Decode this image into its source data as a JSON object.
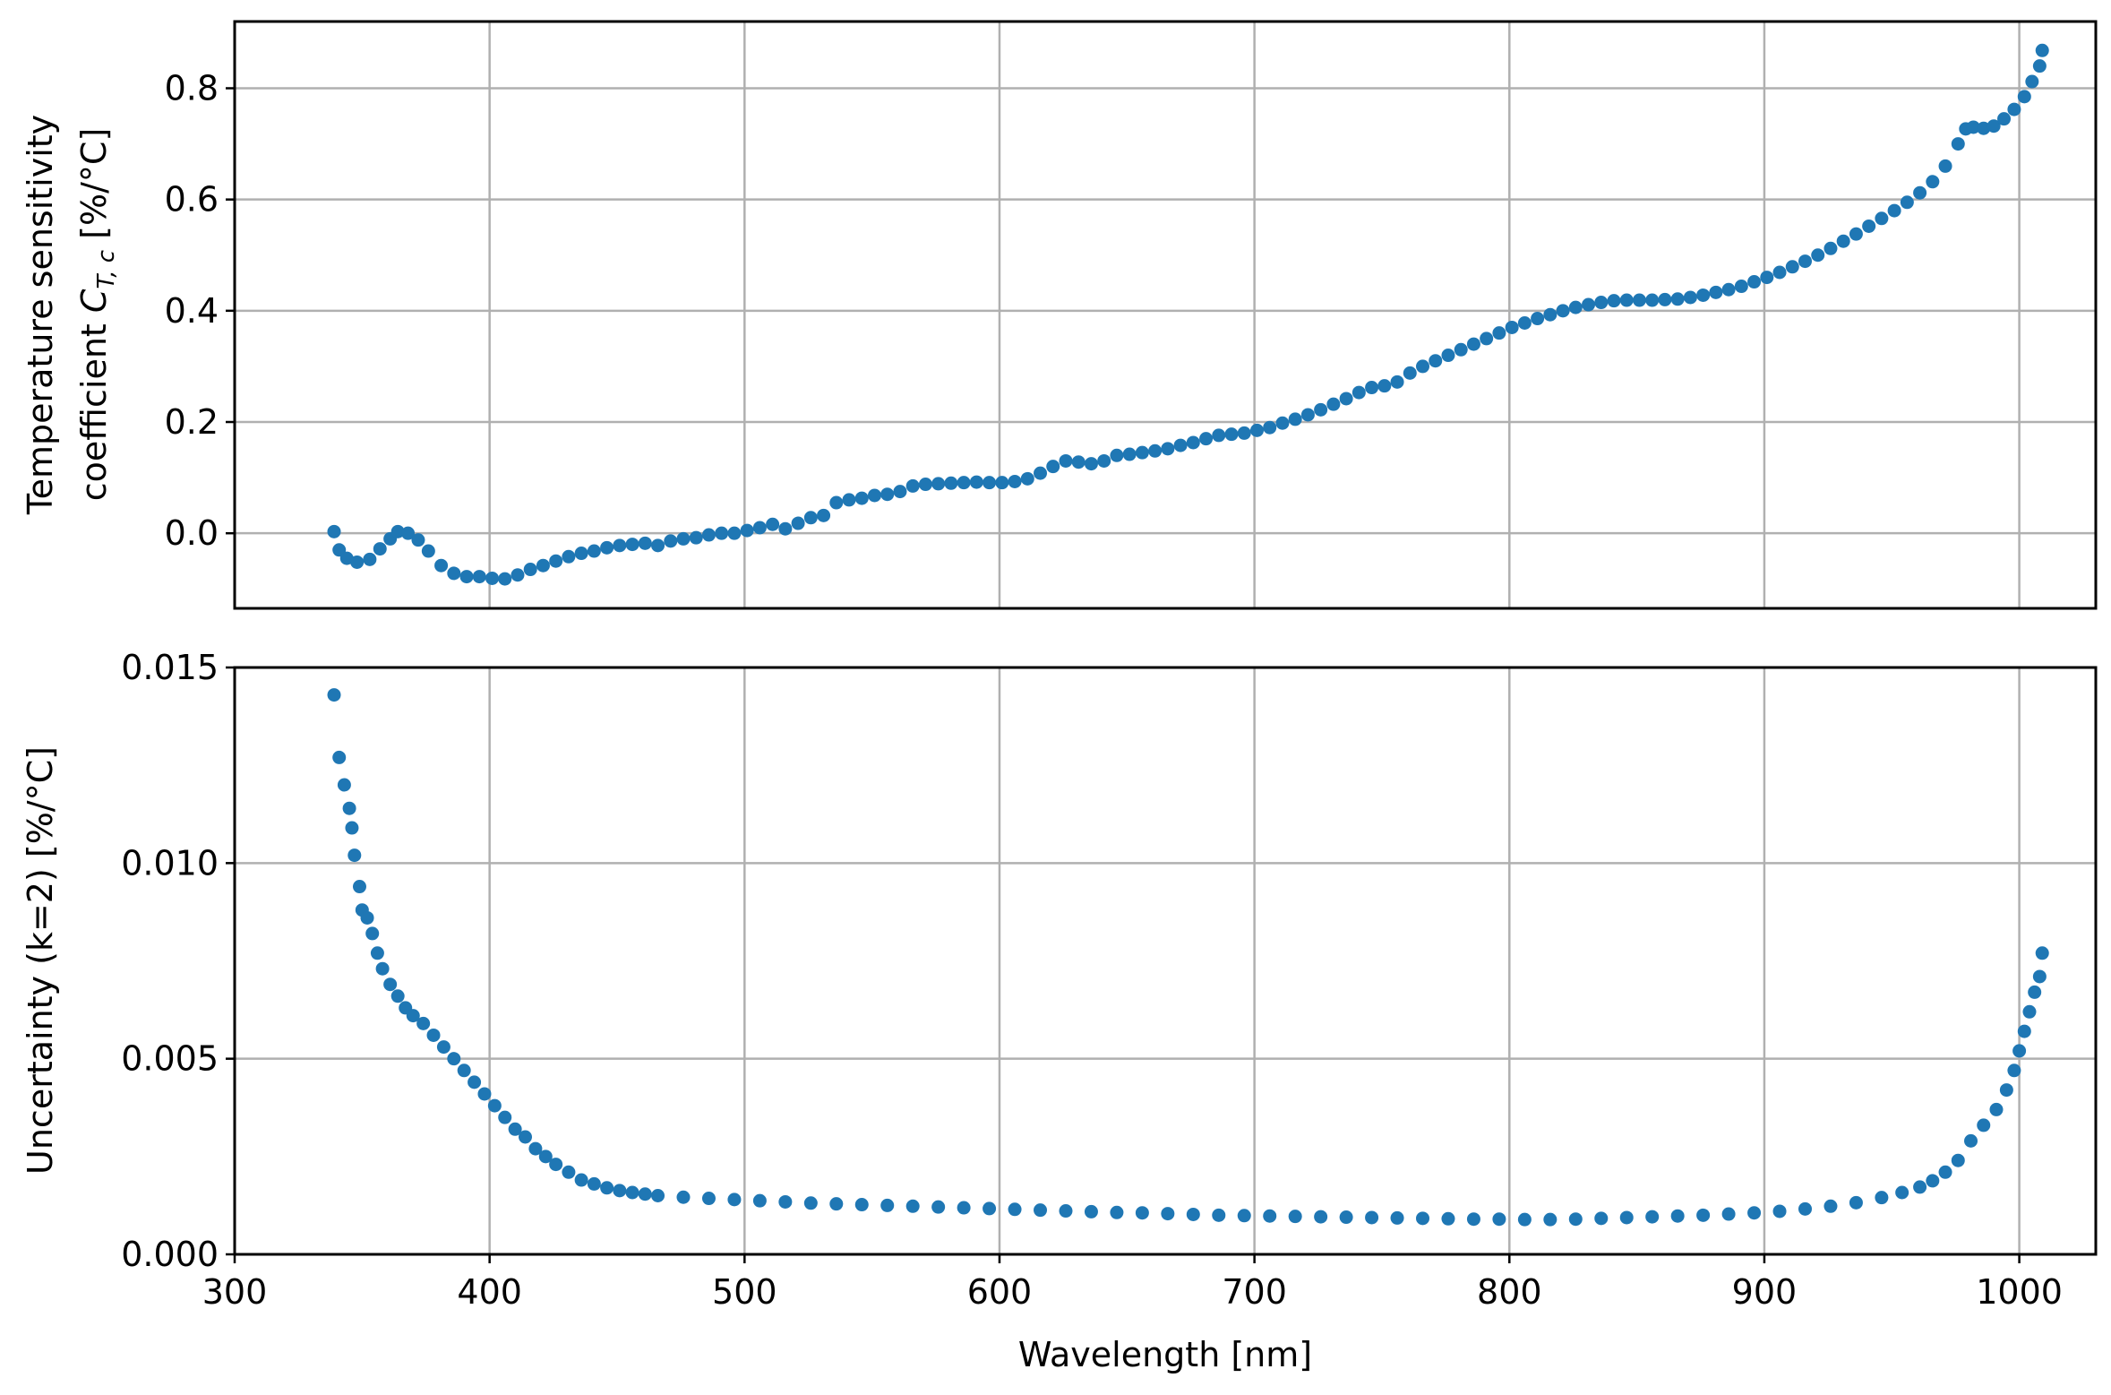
{
  "chart_data": [
    {
      "type": "scatter",
      "xlabel": "Wavelength [nm]",
      "ylabel_lines": [
        "Temperature sensitivity",
        "coefficient",
        "C",
        "T, c",
        "[%/°C]"
      ],
      "xlim": [
        300,
        1030
      ],
      "ylim": [
        -0.135,
        0.92
      ],
      "xticks": [
        300,
        400,
        500,
        600,
        700,
        800,
        900,
        1000
      ],
      "yticks": [
        0.0,
        0.2,
        0.4,
        0.6,
        0.8
      ],
      "ytick_labels": [
        "0.0",
        "0.2",
        "0.4",
        "0.6",
        "0.8"
      ],
      "grid": true,
      "color": "#1f77b4",
      "series": [
        {
          "points": [
            [
              339,
              0.003
            ],
            [
              341,
              -0.03
            ],
            [
              344,
              -0.045
            ],
            [
              348,
              -0.052
            ],
            [
              353,
              -0.047
            ],
            [
              357,
              -0.028
            ],
            [
              361,
              -0.01
            ],
            [
              364,
              0.003
            ],
            [
              368,
              0.0
            ],
            [
              372,
              -0.012
            ],
            [
              376,
              -0.032
            ],
            [
              381,
              -0.058
            ],
            [
              386,
              -0.072
            ],
            [
              391,
              -0.078
            ],
            [
              396,
              -0.078
            ],
            [
              401,
              -0.081
            ],
            [
              406,
              -0.082
            ],
            [
              411,
              -0.075
            ],
            [
              416,
              -0.065
            ],
            [
              421,
              -0.058
            ],
            [
              426,
              -0.05
            ],
            [
              431,
              -0.042
            ],
            [
              436,
              -0.036
            ],
            [
              441,
              -0.032
            ],
            [
              446,
              -0.026
            ],
            [
              451,
              -0.022
            ],
            [
              456,
              -0.02
            ],
            [
              461,
              -0.018
            ],
            [
              466,
              -0.022
            ],
            [
              471,
              -0.014
            ],
            [
              476,
              -0.01
            ],
            [
              481,
              -0.008
            ],
            [
              486,
              -0.003
            ],
            [
              491,
              0.0
            ],
            [
              496,
              0.0
            ],
            [
              501,
              0.005
            ],
            [
              506,
              0.01
            ],
            [
              511,
              0.016
            ],
            [
              516,
              0.008
            ],
            [
              521,
              0.018
            ],
            [
              526,
              0.028
            ],
            [
              531,
              0.032
            ],
            [
              536,
              0.055
            ],
            [
              541,
              0.06
            ],
            [
              546,
              0.063
            ],
            [
              551,
              0.068
            ],
            [
              556,
              0.07
            ],
            [
              561,
              0.075
            ],
            [
              566,
              0.085
            ],
            [
              571,
              0.088
            ],
            [
              576,
              0.089
            ],
            [
              581,
              0.09
            ],
            [
              586,
              0.091
            ],
            [
              591,
              0.092
            ],
            [
              596,
              0.091
            ],
            [
              601,
              0.091
            ],
            [
              606,
              0.093
            ],
            [
              611,
              0.098
            ],
            [
              616,
              0.108
            ],
            [
              621,
              0.12
            ],
            [
              626,
              0.13
            ],
            [
              631,
              0.128
            ],
            [
              636,
              0.125
            ],
            [
              641,
              0.13
            ],
            [
              646,
              0.14
            ],
            [
              651,
              0.142
            ],
            [
              656,
              0.145
            ],
            [
              661,
              0.148
            ],
            [
              666,
              0.152
            ],
            [
              671,
              0.158
            ],
            [
              676,
              0.163
            ],
            [
              681,
              0.17
            ],
            [
              686,
              0.176
            ],
            [
              691,
              0.178
            ],
            [
              696,
              0.18
            ],
            [
              701,
              0.185
            ],
            [
              706,
              0.19
            ],
            [
              711,
              0.198
            ],
            [
              716,
              0.205
            ],
            [
              721,
              0.213
            ],
            [
              726,
              0.222
            ],
            [
              731,
              0.232
            ],
            [
              736,
              0.242
            ],
            [
              741,
              0.253
            ],
            [
              746,
              0.262
            ],
            [
              751,
              0.265
            ],
            [
              756,
              0.272
            ],
            [
              761,
              0.288
            ],
            [
              766,
              0.3
            ],
            [
              771,
              0.31
            ],
            [
              776,
              0.32
            ],
            [
              781,
              0.33
            ],
            [
              786,
              0.34
            ],
            [
              791,
              0.35
            ],
            [
              796,
              0.36
            ],
            [
              801,
              0.37
            ],
            [
              806,
              0.378
            ],
            [
              811,
              0.386
            ],
            [
              816,
              0.393
            ],
            [
              821,
              0.4
            ],
            [
              826,
              0.406
            ],
            [
              831,
              0.411
            ],
            [
              836,
              0.415
            ],
            [
              841,
              0.418
            ],
            [
              846,
              0.419
            ],
            [
              851,
              0.419
            ],
            [
              856,
              0.419
            ],
            [
              861,
              0.42
            ],
            [
              866,
              0.421
            ],
            [
              871,
              0.424
            ],
            [
              876,
              0.428
            ],
            [
              881,
              0.433
            ],
            [
              886,
              0.438
            ],
            [
              891,
              0.444
            ],
            [
              896,
              0.452
            ],
            [
              901,
              0.46
            ],
            [
              906,
              0.469
            ],
            [
              911,
              0.479
            ],
            [
              916,
              0.489
            ],
            [
              921,
              0.5
            ],
            [
              926,
              0.512
            ],
            [
              931,
              0.525
            ],
            [
              936,
              0.538
            ],
            [
              941,
              0.552
            ],
            [
              946,
              0.566
            ],
            [
              951,
              0.58
            ],
            [
              956,
              0.595
            ],
            [
              961,
              0.612
            ],
            [
              966,
              0.632
            ],
            [
              971,
              0.66
            ],
            [
              976,
              0.7
            ],
            [
              979,
              0.727
            ],
            [
              982,
              0.73
            ],
            [
              986,
              0.728
            ],
            [
              990,
              0.732
            ],
            [
              994,
              0.745
            ],
            [
              998,
              0.762
            ],
            [
              1002,
              0.785
            ],
            [
              1005,
              0.812
            ],
            [
              1008,
              0.84
            ],
            [
              1009,
              0.868
            ]
          ]
        }
      ]
    },
    {
      "type": "scatter",
      "xlabel": "Wavelength [nm]",
      "ylabel": "Uncertainty (k=2) [%/°C]",
      "xlim": [
        300,
        1030
      ],
      "ylim": [
        0.0,
        0.015
      ],
      "xticks": [
        300,
        400,
        500,
        600,
        700,
        800,
        900,
        1000
      ],
      "xtick_labels": [
        "300",
        "400",
        "500",
        "600",
        "700",
        "800",
        "900",
        "1000"
      ],
      "yticks": [
        0.0,
        0.005,
        0.01,
        0.015
      ],
      "ytick_labels": [
        "0.000",
        "0.005",
        "0.010",
        "0.015"
      ],
      "grid": true,
      "color": "#1f77b4",
      "series": [
        {
          "points": [
            [
              339,
              0.0143
            ],
            [
              341,
              0.0127
            ],
            [
              343,
              0.012
            ],
            [
              345,
              0.0114
            ],
            [
              346,
              0.0109
            ],
            [
              347,
              0.0102
            ],
            [
              349,
              0.0094
            ],
            [
              350,
              0.0088
            ],
            [
              352,
              0.0086
            ],
            [
              354,
              0.0082
            ],
            [
              356,
              0.0077
            ],
            [
              358,
              0.0073
            ],
            [
              361,
              0.0069
            ],
            [
              364,
              0.0066
            ],
            [
              367,
              0.0063
            ],
            [
              370,
              0.0061
            ],
            [
              374,
              0.0059
            ],
            [
              378,
              0.0056
            ],
            [
              382,
              0.0053
            ],
            [
              386,
              0.005
            ],
            [
              390,
              0.0047
            ],
            [
              394,
              0.0044
            ],
            [
              398,
              0.0041
            ],
            [
              402,
              0.0038
            ],
            [
              406,
              0.0035
            ],
            [
              410,
              0.0032
            ],
            [
              414,
              0.003
            ],
            [
              418,
              0.0027
            ],
            [
              422,
              0.0025
            ],
            [
              426,
              0.0023
            ],
            [
              431,
              0.0021
            ],
            [
              436,
              0.0019
            ],
            [
              441,
              0.0018
            ],
            [
              446,
              0.0017
            ],
            [
              451,
              0.00163
            ],
            [
              456,
              0.00158
            ],
            [
              461,
              0.00154
            ],
            [
              466,
              0.0015
            ],
            [
              476,
              0.00146
            ],
            [
              486,
              0.00143
            ],
            [
              496,
              0.0014
            ],
            [
              506,
              0.00137
            ],
            [
              516,
              0.00134
            ],
            [
              526,
              0.00131
            ],
            [
              536,
              0.00129
            ],
            [
              546,
              0.00127
            ],
            [
              556,
              0.00125
            ],
            [
              566,
              0.00123
            ],
            [
              576,
              0.00121
            ],
            [
              586,
              0.00119
            ],
            [
              596,
              0.00117
            ],
            [
              606,
              0.00115
            ],
            [
              616,
              0.00113
            ],
            [
              626,
              0.00111
            ],
            [
              636,
              0.00109
            ],
            [
              646,
              0.00107
            ],
            [
              656,
              0.00106
            ],
            [
              666,
              0.00104
            ],
            [
              676,
              0.00102
            ],
            [
              686,
              0.001
            ],
            [
              696,
              0.00099
            ],
            [
              706,
              0.00098
            ],
            [
              716,
              0.00097
            ],
            [
              726,
              0.00096
            ],
            [
              736,
              0.00095
            ],
            [
              746,
              0.00094
            ],
            [
              756,
              0.00093
            ],
            [
              766,
              0.00092
            ],
            [
              776,
              0.00091
            ],
            [
              786,
              0.0009
            ],
            [
              796,
              0.0009
            ],
            [
              806,
              0.00089
            ],
            [
              816,
              0.00089
            ],
            [
              826,
              0.0009
            ],
            [
              836,
              0.00092
            ],
            [
              846,
              0.00094
            ],
            [
              856,
              0.00096
            ],
            [
              866,
              0.00098
            ],
            [
              876,
              0.001
            ],
            [
              886,
              0.00103
            ],
            [
              896,
              0.00106
            ],
            [
              906,
              0.0011
            ],
            [
              916,
              0.00116
            ],
            [
              926,
              0.00123
            ],
            [
              936,
              0.00132
            ],
            [
              946,
              0.00145
            ],
            [
              954,
              0.00158
            ],
            [
              961,
              0.00172
            ],
            [
              966,
              0.00188
            ],
            [
              971,
              0.0021
            ],
            [
              976,
              0.0024
            ],
            [
              981,
              0.0029
            ],
            [
              986,
              0.0033
            ],
            [
              991,
              0.0037
            ],
            [
              995,
              0.0042
            ],
            [
              998,
              0.0047
            ],
            [
              1000,
              0.0052
            ],
            [
              1002,
              0.0057
            ],
            [
              1004,
              0.0062
            ],
            [
              1006,
              0.0067
            ],
            [
              1008,
              0.0071
            ],
            [
              1009,
              0.0077
            ]
          ]
        }
      ]
    }
  ]
}
